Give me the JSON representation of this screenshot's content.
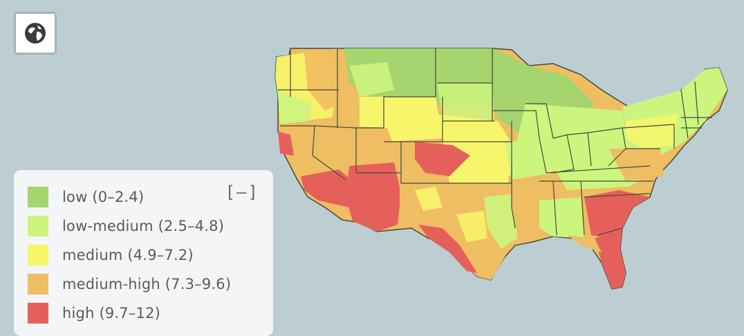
{
  "toolbar": {
    "globe_icon": "globe-icon"
  },
  "legend": {
    "collapse_label": "[–]",
    "items": [
      {
        "label": "low (0–2.4)",
        "color": "#a6d46e"
      },
      {
        "label": "low-medium (2.5–4.8)",
        "color": "#ccf57e"
      },
      {
        "label": "medium (4.9–7.2)",
        "color": "#f7f66b"
      },
      {
        "label": "medium-high (7.3–9.6)",
        "color": "#efbd62"
      },
      {
        "label": "high (9.7–12)",
        "color": "#e5605a"
      }
    ]
  },
  "map": {
    "background": "#bcced2",
    "state_border": "#3f4a3f"
  }
}
